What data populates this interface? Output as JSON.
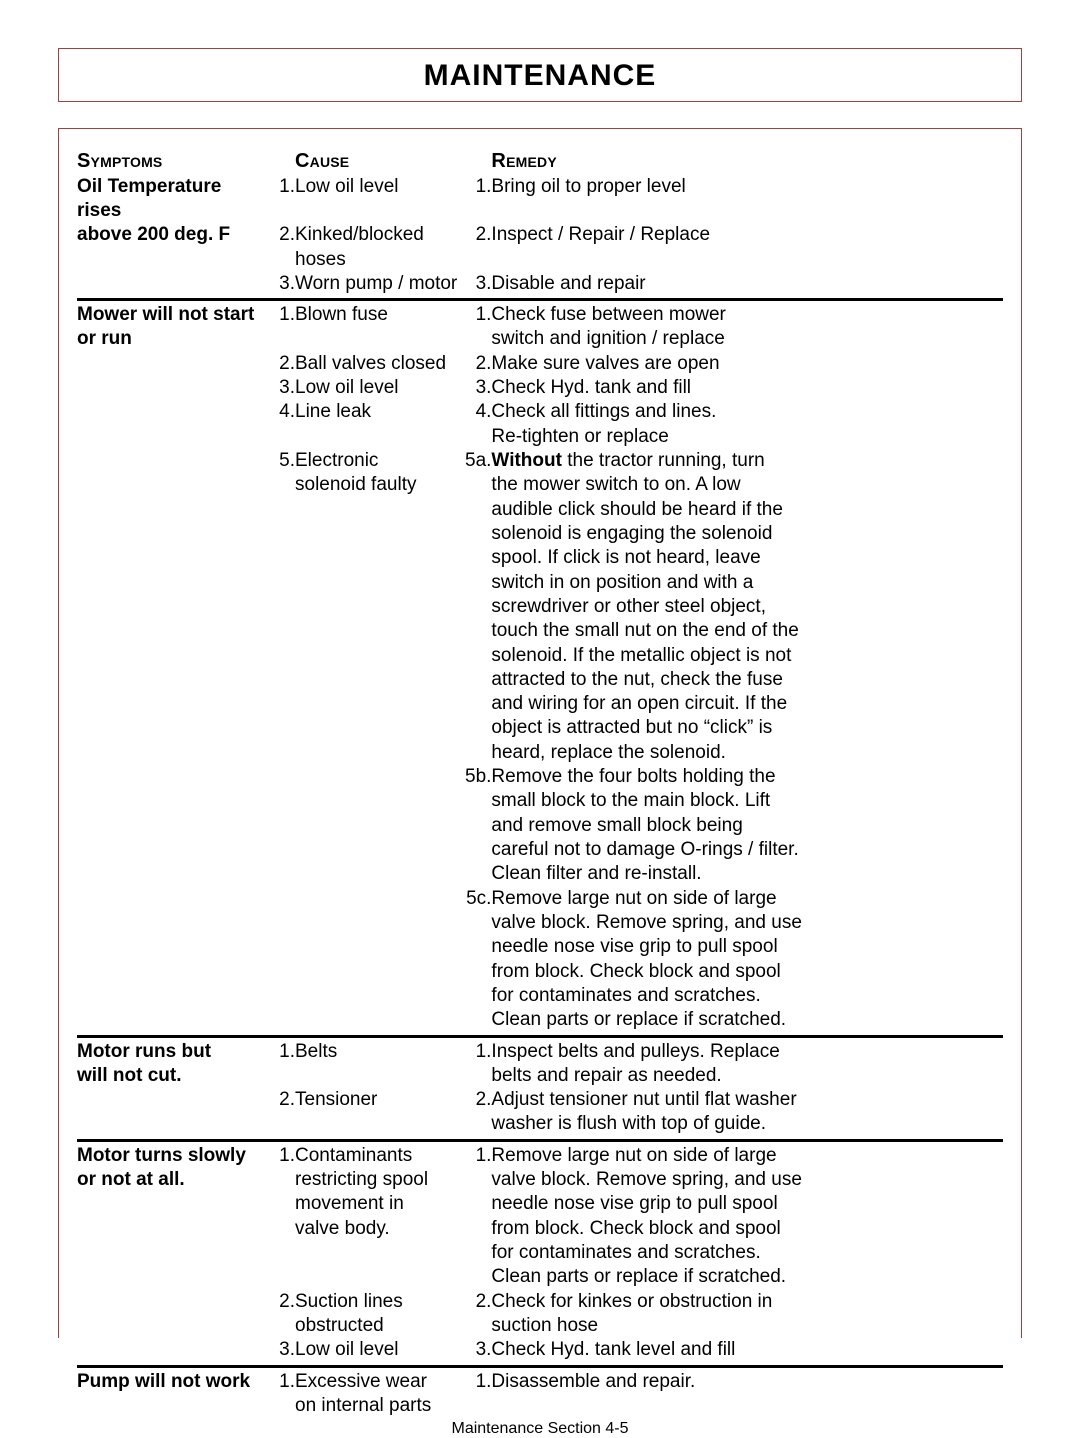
{
  "page_title": "MAINTENANCE",
  "headers": {
    "symptoms": "Symptoms",
    "cause": "Cause",
    "remedy": "Remedy"
  },
  "sections": [
    {
      "symptom": [
        "Oil Temperature rises",
        "above 200 deg. F"
      ],
      "rows": [
        {
          "cn": "1.",
          "ct": "Low oil level",
          "rn": "1.",
          "rt": "Bring oil to proper level"
        },
        {
          "cn": "2.",
          "ct": "Kinked/blocked hoses",
          "rn": "2.",
          "rt": "Inspect / Repair / Replace"
        },
        {
          "cn": "3.",
          "ct": "Worn pump / motor",
          "rn": "3.",
          "rt": "Disable and repair"
        }
      ]
    },
    {
      "symptom": [
        "Mower will not start",
        "or run"
      ],
      "rows": [
        {
          "cn": "1.",
          "ct": "Blown fuse",
          "rn": "1.",
          "rt": "Check fuse between mower"
        },
        {
          "cn": "",
          "ct": "",
          "rn": "",
          "rt": "switch and ignition / replace"
        },
        {
          "cn": "2.",
          "ct": "Ball valves closed",
          "rn": "2.",
          "rt": "Make sure valves are open"
        },
        {
          "cn": "3.",
          "ct": "Low oil level",
          "rn": "3.",
          "rt": "Check Hyd. tank and fill"
        },
        {
          "cn": "4.",
          "ct": "Line leak",
          "rn": "4.",
          "rt": "Check all fittings and lines."
        },
        {
          "cn": "",
          "ct": "",
          "rn": "",
          "rt": "Re-tighten or replace"
        },
        {
          "cn": "5.",
          "ct": "Electronic",
          "rn": "5a.",
          "rt_html": true,
          "rt": "<b data-name='bold-without' data-interactable='false' data-bind='w_without'></b> the tractor running, turn"
        },
        {
          "cn": "",
          "ct": "solenoid faulty",
          "rn": "",
          "rt": "the mower switch to on.  A low"
        },
        {
          "cn": "",
          "ct": "",
          "rn": "",
          "rt": "audible click should be heard if the"
        },
        {
          "cn": "",
          "ct": "",
          "rn": "",
          "rt": "solenoid is engaging the solenoid"
        },
        {
          "cn": "",
          "ct": "",
          "rn": "",
          "rt": "spool.  If click is not heard, leave"
        },
        {
          "cn": "",
          "ct": "",
          "rn": "",
          "rt": "switch in on position and with a"
        },
        {
          "cn": "",
          "ct": "",
          "rn": "",
          "rt": "screwdriver or other steel object,"
        },
        {
          "cn": "",
          "ct": "",
          "rn": "",
          "rt": "touch the small nut on the end of the"
        },
        {
          "cn": "",
          "ct": "",
          "rn": "",
          "rt": "solenoid.  If the metallic object is not"
        },
        {
          "cn": "",
          "ct": "",
          "rn": "",
          "rt": "attracted to the nut, check the fuse"
        },
        {
          "cn": "",
          "ct": "",
          "rn": "",
          "rt": "and wiring for an open circuit.  If the"
        },
        {
          "cn": "",
          "ct": "",
          "rn": "",
          "rt": "object is attracted but no “click” is"
        },
        {
          "cn": "",
          "ct": "",
          "rn": "",
          "rt": "heard, replace the solenoid."
        },
        {
          "cn": "",
          "ct": "",
          "rn": "5b.",
          "rt": "Remove the four bolts holding the"
        },
        {
          "cn": "",
          "ct": "",
          "rn": "",
          "rt": "small block to the main block.  Lift"
        },
        {
          "cn": "",
          "ct": "",
          "rn": "",
          "rt": "and remove small block being"
        },
        {
          "cn": "",
          "ct": "",
          "rn": "",
          "rt": "careful not to damage O-rings / filter."
        },
        {
          "cn": "",
          "ct": "",
          "rn": "",
          "rt": "Clean filter and re-install."
        },
        {
          "cn": "",
          "ct": "",
          "rn": "5c.",
          "rt": "Remove large nut on side of large"
        },
        {
          "cn": "",
          "ct": "",
          "rn": "",
          "rt": "valve block.  Remove spring, and use"
        },
        {
          "cn": "",
          "ct": "",
          "rn": "",
          "rt": "needle nose vise grip to pull spool"
        },
        {
          "cn": "",
          "ct": "",
          "rn": "",
          "rt": "from block.  Check block and spool"
        },
        {
          "cn": "",
          "ct": "",
          "rn": "",
          "rt": "for contaminates and scratches."
        },
        {
          "cn": "",
          "ct": "",
          "rn": "",
          "rt": "Clean parts or replace if scratched."
        }
      ]
    },
    {
      "symptom": [
        "Motor runs but",
        "will not cut."
      ],
      "rows": [
        {
          "cn": "1.",
          "ct": "Belts",
          "rn": "1.",
          "rt": "Inspect belts and pulleys.  Replace"
        },
        {
          "cn": "",
          "ct": "",
          "rn": "",
          "rt": "belts and repair as needed."
        },
        {
          "cn": "2.",
          "ct": "Tensioner",
          "rn": "2.",
          "rt": "Adjust tensioner nut until flat washer"
        },
        {
          "cn": "",
          "ct": "",
          "rn": "",
          "rt": "washer is flush with top of guide."
        }
      ]
    },
    {
      "symptom": [
        "Motor turns slowly",
        "or not at all."
      ],
      "rows": [
        {
          "cn": "1.",
          "ct": "Contaminants",
          "rn": "1.",
          "rt": "Remove large nut on side of large"
        },
        {
          "cn": "",
          "ct": "restricting spool",
          "rn": "",
          "rt": "valve block.  Remove spring, and use"
        },
        {
          "cn": "",
          "ct": "movement in",
          "rn": "",
          "rt": "needle nose vise grip to pull spool"
        },
        {
          "cn": "",
          "ct": "valve body.",
          "rn": "",
          "rt": "from block.  Check block and spool"
        },
        {
          "cn": "",
          "ct": "",
          "rn": "",
          "rt": "for contaminates and scratches."
        },
        {
          "cn": "",
          "ct": "",
          "rn": "",
          "rt": "Clean parts or replace if scratched."
        },
        {
          "cn": "2.",
          "ct": "Suction lines",
          "rn": "2.",
          "rt": "Check for kinkes or obstruction in"
        },
        {
          "cn": "",
          "ct": "obstructed",
          "rn": "",
          "rt": "suction hose"
        },
        {
          "cn": "3.",
          "ct": "Low oil level",
          "rn": "3.",
          "rt": "Check Hyd. tank level and fill"
        }
      ]
    },
    {
      "symptom": [
        "Pump will not work"
      ],
      "rows": [
        {
          "cn": "1.",
          "ct": "Excessive wear",
          "rn": "1.",
          "rt": "Disassemble and repair."
        },
        {
          "cn": "",
          "ct": "on internal parts",
          "rn": "",
          "rt": ""
        }
      ],
      "no_divider": true
    }
  ],
  "w_without": "Without",
  "footer": "Maintenance Section  4-5",
  "colors": {
    "border": "#a04040",
    "text": "#000000",
    "background": "#ffffff",
    "divider": "#000000"
  },
  "typography": {
    "title_fontsize": 30,
    "header_fontsize": 20,
    "body_fontsize": 19,
    "footer_fontsize": 16,
    "font_family": "Arial"
  }
}
